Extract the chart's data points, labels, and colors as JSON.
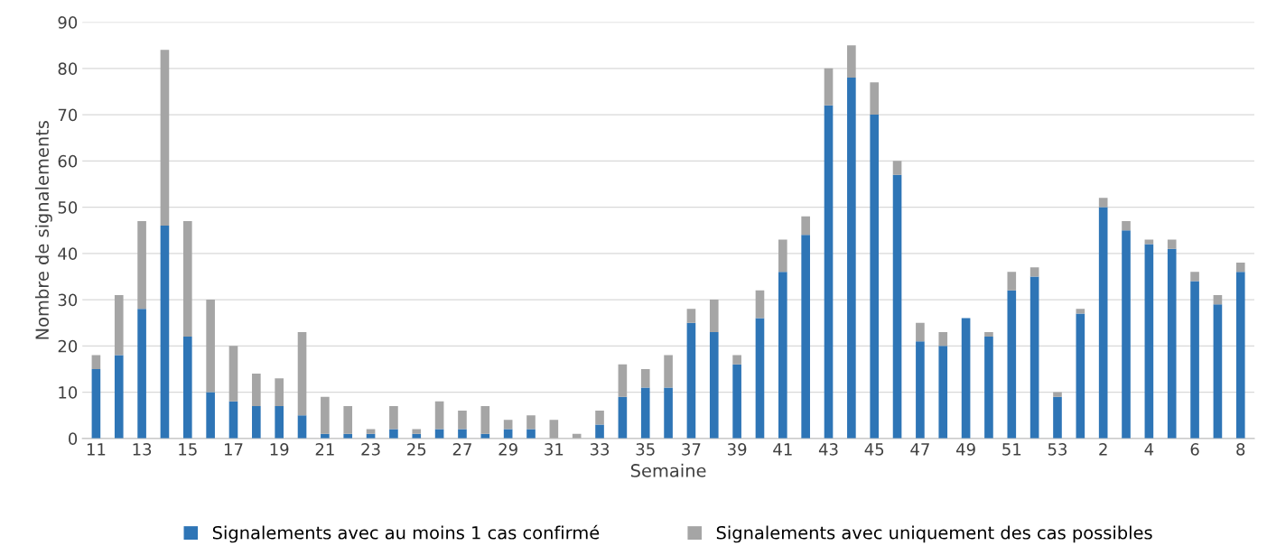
{
  "chart_data": {
    "type": "bar",
    "stacked": true,
    "xlabel": "Semaine",
    "ylabel": "Nombre de signalements",
    "categories": [
      "11",
      null,
      "13",
      null,
      "15",
      null,
      "17",
      null,
      "19",
      null,
      "21",
      null,
      "23",
      null,
      "25",
      null,
      "27",
      null,
      "29",
      null,
      "31",
      null,
      "33",
      null,
      "35",
      null,
      "37",
      null,
      "39",
      null,
      "41",
      null,
      "43",
      null,
      "45",
      null,
      "47",
      null,
      "49",
      null,
      "51",
      null,
      "53",
      null,
      "2",
      null,
      "4",
      null,
      "6",
      null,
      "8"
    ],
    "series": [
      {
        "name": "Signalements avec au moins 1 cas confirmé",
        "color": "#2e75b6",
        "values": [
          15,
          18,
          28,
          46,
          22,
          10,
          8,
          7,
          7,
          5,
          1,
          1,
          1,
          2,
          1,
          2,
          2,
          1,
          2,
          2,
          0,
          0,
          3,
          9,
          11,
          11,
          25,
          23,
          16,
          26,
          36,
          44,
          72,
          78,
          70,
          57,
          21,
          20,
          26,
          22,
          32,
          35,
          9,
          27,
          50,
          45,
          42,
          41,
          34,
          29,
          36
        ]
      },
      {
        "name": "Signalements avec uniquement des cas possibles",
        "color": "#a5a5a5",
        "values": [
          3,
          13,
          19,
          38,
          25,
          20,
          12,
          7,
          6,
          18,
          8,
          6,
          1,
          5,
          1,
          6,
          4,
          6,
          2,
          3,
          4,
          1,
          3,
          7,
          4,
          7,
          3,
          7,
          2,
          6,
          7,
          4,
          8,
          7,
          7,
          3,
          4,
          3,
          0,
          1,
          4,
          2,
          1,
          1,
          2,
          2,
          1,
          2,
          2,
          2,
          2
        ]
      }
    ],
    "ylim": [
      0,
      90
    ],
    "yticks": [
      0,
      10,
      20,
      30,
      40,
      50,
      60,
      70,
      80,
      90
    ],
    "grid": "y",
    "legend": "bottom"
  }
}
